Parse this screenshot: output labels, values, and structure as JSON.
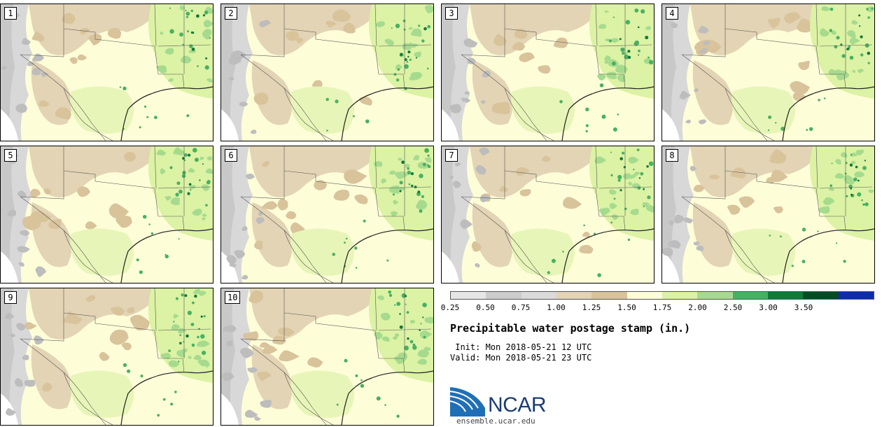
{
  "title": "Precipitable water postage stamp (in.)",
  "init_line": " Init: Mon 2018-05-21 12 UTC",
  "valid_line": "Valid: Mon 2018-05-21 23 UTC",
  "logo_text": "NCAR",
  "url": "ensemble.ucar.edu",
  "members": [
    "1",
    "2",
    "3",
    "4",
    "5",
    "6",
    "7",
    "8",
    "9",
    "10"
  ],
  "colorbar": {
    "labels": [
      "0.25",
      "0.50",
      "0.75",
      "1.00",
      "1.25",
      "1.50",
      "1.75",
      "2.00",
      "2.50",
      "3.00",
      "3.50"
    ],
    "colors": [
      "#e6e6e6",
      "#cccccc",
      "#dadada",
      "#e2d4b4",
      "#d9c39b",
      "#fdfdd8",
      "#dcf2a4",
      "#a6db8e",
      "#48b161",
      "#107a39",
      "#004d25",
      "#0b2ea8"
    ]
  }
}
